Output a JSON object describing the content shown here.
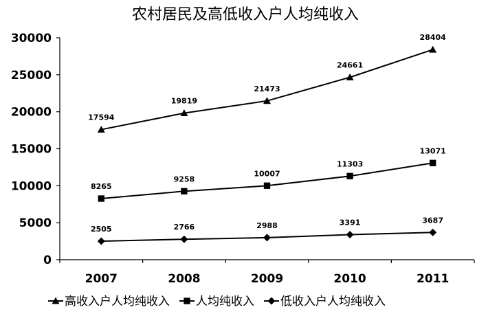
{
  "chart_data": {
    "type": "line",
    "title": "农村居民及高低收入户人均纯收入",
    "xlabel": "",
    "ylabel": "",
    "categories": [
      "2007",
      "2008",
      "2009",
      "2010",
      "2011"
    ],
    "ylim": [
      0,
      30000
    ],
    "yticks": [
      0,
      5000,
      10000,
      15000,
      20000,
      25000,
      30000
    ],
    "grid": false,
    "legend_position": "bottom",
    "series": [
      {
        "name": "高收入户人均纯收入",
        "marker": "triangle",
        "color": "#000000",
        "values": [
          17594,
          19819,
          21473,
          24661,
          28404
        ]
      },
      {
        "name": "人均纯收入",
        "marker": "square",
        "color": "#000000",
        "values": [
          8265,
          9258,
          10007,
          11303,
          13071
        ]
      },
      {
        "name": "低收入户人均纯收入",
        "marker": "diamond",
        "color": "#000000",
        "values": [
          2505,
          2766,
          2988,
          3391,
          3687
        ]
      }
    ]
  }
}
